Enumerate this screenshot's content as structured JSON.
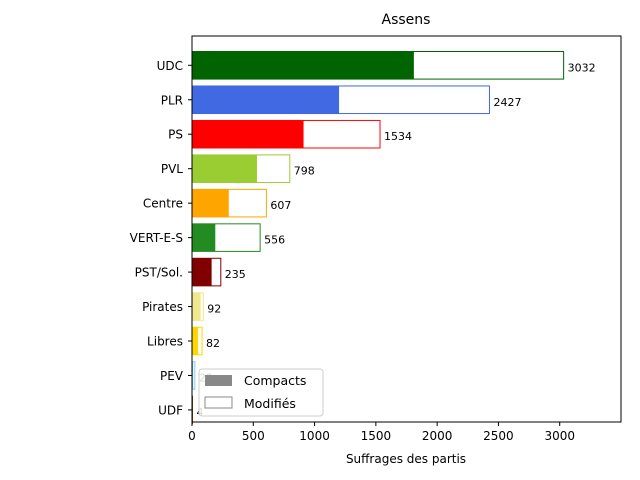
{
  "chart_data": {
    "type": "bar",
    "orientation": "horizontal",
    "title": "Assens",
    "xlabel": "Suffrages des partis",
    "ylabel": "",
    "xlim": [
      0,
      3500
    ],
    "xticks": [
      0,
      500,
      1000,
      1500,
      2000,
      2500,
      3000
    ],
    "categories": [
      "UDC",
      "PLR",
      "PS",
      "PVL",
      "Centre",
      "VERT-E-S",
      "PST/Sol.",
      "Pirates",
      "Libres",
      "PEV",
      "UDF"
    ],
    "series": [
      {
        "name": "Compacts",
        "values": [
          1810,
          1200,
          910,
          530,
          300,
          190,
          160,
          70,
          50,
          10,
          2
        ]
      },
      {
        "name": "Modifiés",
        "values": [
          1222,
          1227,
          624,
          268,
          307,
          366,
          75,
          22,
          32,
          13,
          2
        ]
      }
    ],
    "totals": [
      3032,
      2427,
      1534,
      798,
      607,
      556,
      235,
      92,
      82,
      23,
      4
    ],
    "colors": [
      "#006400",
      "#4169e1",
      "#ff0000",
      "#9acd32",
      "#ffa500",
      "#228b22",
      "#800000",
      "#f0e68c",
      "#ffd700",
      "#87ceeb",
      "#8b4513"
    ],
    "grid": false,
    "legend_position": "lower-left"
  }
}
